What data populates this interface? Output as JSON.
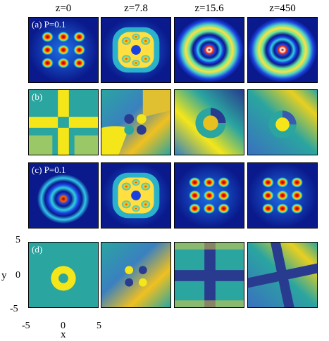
{
  "columns": [
    "z=0",
    "z=7.8",
    "z=15.6",
    "z=450"
  ],
  "row_labels": {
    "a": "(a) P=0.1",
    "b": "(b)",
    "c": "(c) P=0.1",
    "d": "(d)"
  },
  "axes": {
    "xlabel": "x",
    "ylabel": "y",
    "xticks": [
      "-5",
      "0",
      "5"
    ],
    "yticks": [
      "5",
      "0",
      "-5"
    ]
  },
  "colors": {
    "background_blue": "#0a1a8c",
    "phase_teal": "#2aa5a0",
    "phase_yellow": "#f5e61a",
    "phase_dark": "#283b8e"
  }
}
